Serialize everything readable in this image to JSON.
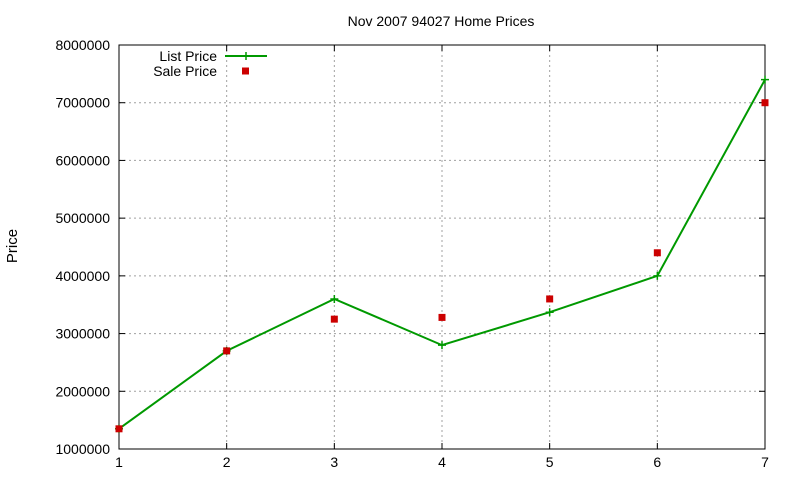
{
  "chart_data": {
    "type": "line",
    "title": "Nov 2007 94027 Home Prices",
    "xlabel": "",
    "ylabel": "Price",
    "x": [
      1,
      2,
      3,
      4,
      5,
      6,
      7
    ],
    "xlim": [
      1,
      7
    ],
    "ylim": [
      1000000,
      8000000
    ],
    "xticks": [
      "1",
      "2",
      "3",
      "4",
      "5",
      "6",
      "7"
    ],
    "yticks": [
      "1000000",
      "2000000",
      "3000000",
      "4000000",
      "5000000",
      "6000000",
      "7000000",
      "8000000"
    ],
    "grid": true,
    "legend_position": "top-left",
    "series": [
      {
        "name": "List Price",
        "style": "line-with-plus-markers",
        "color": "#009900",
        "values": [
          1350000,
          2700000,
          3600000,
          2800000,
          3370000,
          4000000,
          7400000
        ]
      },
      {
        "name": "Sale Price",
        "style": "square-markers",
        "color": "#cc0000",
        "values": [
          1350000,
          2700000,
          3250000,
          3280000,
          3600000,
          4400000,
          7000000
        ]
      }
    ]
  }
}
